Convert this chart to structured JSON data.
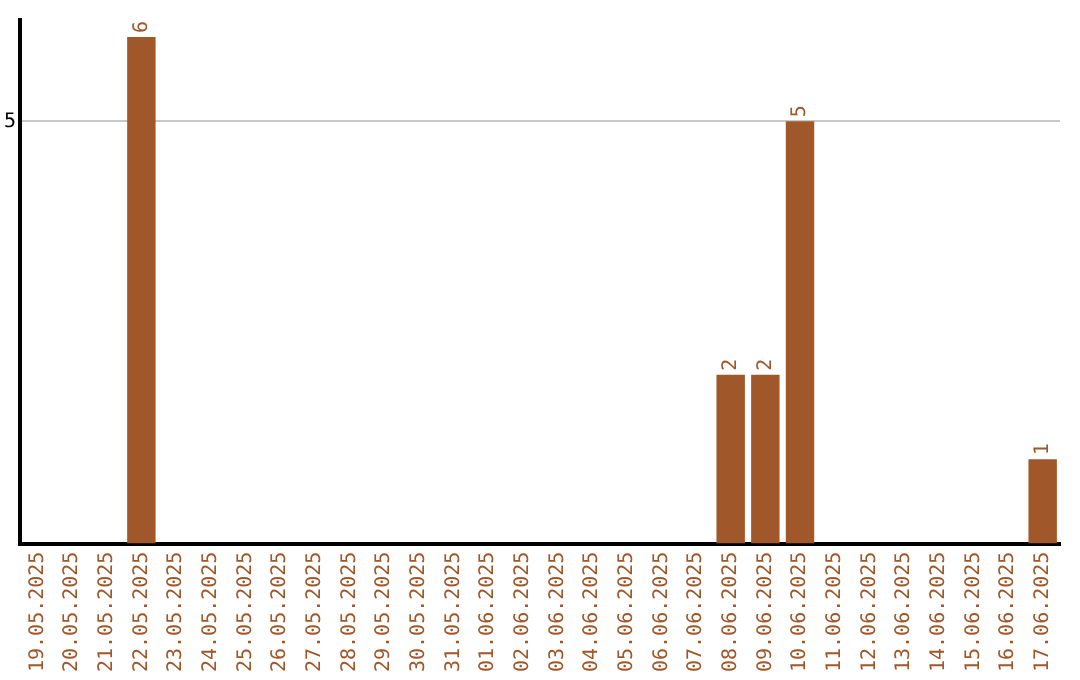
{
  "chart_data": {
    "type": "bar",
    "categories": [
      "19.05.2025",
      "20.05.2025",
      "21.05.2025",
      "22.05.2025",
      "23.05.2025",
      "24.05.2025",
      "25.05.2025",
      "26.05.2025",
      "27.05.2025",
      "28.05.2025",
      "29.05.2025",
      "30.05.2025",
      "31.05.2025",
      "01.06.2025",
      "02.06.2025",
      "03.06.2025",
      "04.06.2025",
      "05.06.2025",
      "06.06.2025",
      "07.06.2025",
      "08.06.2025",
      "09.06.2025",
      "10.06.2025",
      "11.06.2025",
      "12.06.2025",
      "13.06.2025",
      "14.06.2025",
      "15.06.2025",
      "16.06.2025",
      "17.06.2025"
    ],
    "values": [
      0,
      0,
      0,
      6,
      0,
      0,
      0,
      0,
      0,
      0,
      0,
      0,
      0,
      0,
      0,
      0,
      0,
      0,
      0,
      0,
      2,
      2,
      5,
      0,
      0,
      0,
      0,
      0,
      0,
      1
    ],
    "value_labels": [
      null,
      null,
      null,
      "6",
      null,
      null,
      null,
      null,
      null,
      null,
      null,
      null,
      null,
      null,
      null,
      null,
      null,
      null,
      null,
      null,
      "2",
      "2",
      "5",
      null,
      null,
      null,
      null,
      null,
      null,
      "1"
    ],
    "color": "#a0572a",
    "ylim": [
      0,
      6.2
    ],
    "yticks": [
      5
    ],
    "grid": "y",
    "legend": false
  }
}
